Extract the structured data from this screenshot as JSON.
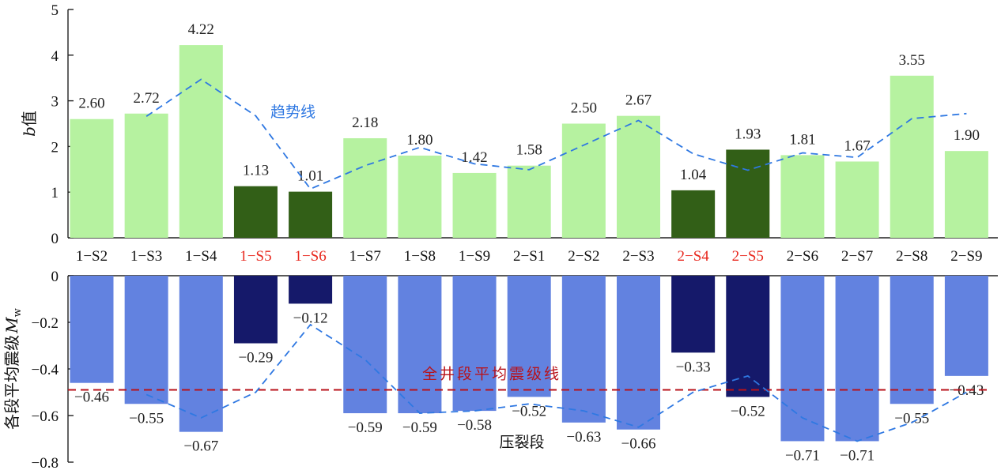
{
  "chart_data": [
    {
      "type": "bar",
      "ylabel": "b值",
      "ylim": [
        0,
        5
      ],
      "yticks": [
        "0",
        "1",
        "2",
        "3",
        "4",
        "5"
      ],
      "categories": [
        "1−S2",
        "1−S3",
        "1−S4",
        "1−S5",
        "1−S6",
        "1−S7",
        "1−S8",
        "1−S9",
        "2−S1",
        "2−S2",
        "2−S3",
        "2−S4",
        "2−S5",
        "2−S6",
        "2−S7",
        "2−S8",
        "2−S9"
      ],
      "highlighted_categories": [
        "1−S5",
        "1−S6",
        "2−S4",
        "2−S5"
      ],
      "values": [
        2.6,
        2.72,
        4.22,
        1.13,
        1.01,
        2.18,
        1.8,
        1.42,
        1.58,
        2.5,
        2.67,
        1.04,
        1.93,
        1.81,
        1.67,
        3.55,
        1.9
      ],
      "value_labels": [
        "2.60",
        "2.72",
        "4.22",
        "1.13",
        "1.01",
        "2.18",
        "1.80",
        "1.42",
        "1.58",
        "2.50",
        "2.67",
        "1.04",
        "1.93",
        "1.81",
        "1.67",
        "3.55",
        "1.90"
      ],
      "trend": {
        "label": "趋势线",
        "x_start_index": 1,
        "values": [
          2.66,
          3.47,
          2.67,
          1.07,
          1.58,
          1.98,
          1.62,
          1.49,
          2.03,
          2.57,
          1.84,
          1.48,
          1.86,
          1.76,
          2.61,
          2.72
        ]
      },
      "colors": {
        "normal": "#b6f2a0",
        "highlight": "#325f17",
        "trend": "#2f78e2",
        "highlight_label": "#e8281e"
      }
    },
    {
      "type": "bar",
      "ylabel": "各段平均震级",
      "ylabel_symbol": "M",
      "ylabel_subscript": "w",
      "xlabel": "压裂段",
      "ylim": [
        -0.8,
        0
      ],
      "yticks": [
        "0",
        "−0.2",
        "−0.4",
        "−0.6",
        "−0.8"
      ],
      "categories": [
        "1−S2",
        "1−S3",
        "1−S4",
        "1−S5",
        "1−S6",
        "1−S7",
        "1−S8",
        "1−S9",
        "2−S1",
        "2−S2",
        "2−S3",
        "2−S4",
        "2−S5",
        "2−S6",
        "2−S7",
        "2−S8",
        "2−S9"
      ],
      "highlighted_categories": [
        "1−S5",
        "1−S6",
        "2−S4",
        "2−S5"
      ],
      "values": [
        -0.46,
        -0.55,
        -0.67,
        -0.29,
        -0.12,
        -0.59,
        -0.59,
        -0.58,
        -0.52,
        -0.63,
        -0.66,
        -0.33,
        -0.52,
        -0.71,
        -0.71,
        -0.55,
        -0.43
      ],
      "value_labels": [
        "−0.46",
        "−0.55",
        "−0.67",
        "−0.29",
        "−0.12",
        "−0.59",
        "−0.59",
        "−0.58",
        "−0.52",
        "−0.63",
        "−0.66",
        "−0.33",
        "−0.52",
        "−0.71",
        "−0.71",
        "−0.55",
        "−0.43"
      ],
      "trend": {
        "x_start_index": 1,
        "values": [
          -0.51,
          -0.61,
          -0.5,
          -0.21,
          -0.36,
          -0.59,
          -0.58,
          -0.55,
          -0.58,
          -0.65,
          -0.5,
          -0.43,
          -0.61,
          -0.71,
          -0.63,
          -0.5
        ]
      },
      "reference_line": {
        "label": "全井段平均震级线",
        "value": -0.49
      },
      "colors": {
        "normal": "#6282e0",
        "highlight": "#15196a",
        "trend": "#2f78e2",
        "reference": "#b8121a"
      }
    }
  ]
}
